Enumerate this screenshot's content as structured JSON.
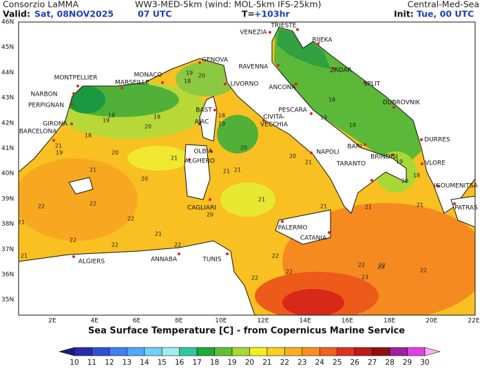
{
  "header": {
    "source": "Consorzio LaMMA",
    "model": "WW3-MED-5km (wind: MOL-5km IFS-25km)",
    "region": "Central-Med-Sea",
    "valid_label": "Valid:",
    "valid_date": "Sat, 08NOV2025",
    "valid_time": "07 UTC",
    "step_label": "T=",
    "step_value": "+103hr",
    "init_label": "Init:",
    "init_value": "Tue, 00 UTC"
  },
  "map": {
    "lat_labels": [
      "46N",
      "45N",
      "44N",
      "43N",
      "42N",
      "41N",
      "40N",
      "39N",
      "38N",
      "37N",
      "36N",
      "35N"
    ],
    "lon_labels": [
      "2E",
      "4E",
      "6E",
      "8E",
      "10E",
      "12E",
      "14E",
      "16E",
      "18E",
      "20E",
      "22E"
    ],
    "cities": [
      "TRIESTE",
      "VENEZIA",
      "RIJEKA",
      "ZADAR",
      "GENOVA",
      "RAVENNA",
      "MONTPELLIER",
      "MONACO",
      "MARSEILLE",
      "LIVORNO",
      "ANCONA",
      "SPLIT",
      "NARBON",
      "PERPIGNAN",
      "DUBROVNIK",
      "BAST",
      "PESCARA",
      "AJAC",
      "CIVITA-",
      "VECCHIA",
      "GIRONA",
      "BARCELONA",
      "OLBIA",
      "NAPOLI",
      "DURRES",
      "BARI",
      "ALGHERO",
      "TARANTO",
      "BRINDISI",
      "VLORE",
      "IGOUMENITSA",
      "CAGLIARI",
      "PATRAS",
      "PALERMO",
      "CATANIA",
      "ALGIERS",
      "ANNABA",
      "TUNIS"
    ],
    "isotherm_labels": [
      19,
      18,
      20,
      18,
      19,
      20,
      18,
      19,
      19,
      18,
      19,
      20,
      21,
      18,
      19,
      20,
      21,
      21,
      20,
      21,
      22,
      22,
      21,
      21,
      20,
      21,
      21,
      22,
      22,
      21,
      21,
      20,
      21,
      21,
      22,
      22,
      22,
      22,
      23,
      22,
      22,
      23,
      22,
      22,
      18,
      18,
      19,
      20,
      21
    ]
  },
  "colorbar": {
    "title": "Sea Surface Temperature [C] - from Copernicus Marine Service",
    "ticks": [
      10,
      11,
      12,
      13,
      14,
      15,
      16,
      17,
      18,
      19,
      20,
      21,
      22,
      23,
      24,
      25,
      26,
      27,
      28,
      29,
      30
    ],
    "under_color": "#1a1a7a",
    "over_color": "#ffb0f0",
    "colors": [
      "#2a2aa8",
      "#2f4fd8",
      "#3f7ff0",
      "#4fa8f8",
      "#70d0f8",
      "#a0ecf0",
      "#30c8a0",
      "#20a838",
      "#60c030",
      "#a8d830",
      "#f0f020",
      "#f8d020",
      "#f8b020",
      "#f89020",
      "#f06020",
      "#e03020",
      "#c01818",
      "#901010",
      "#a020a0",
      "#e040e0"
    ]
  }
}
